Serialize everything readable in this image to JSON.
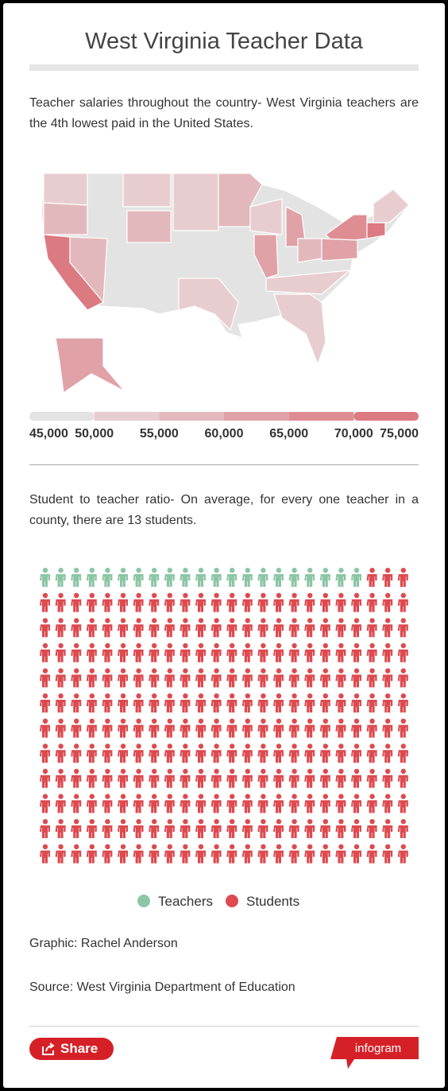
{
  "header": {
    "title": "West Virginia Teacher Data"
  },
  "chart_data": [
    {
      "type": "choropleth-map",
      "description": "Teacher salaries throughout the country- West Virginia teachers are the 4th lowest paid in the United States.",
      "legend_ticks": [
        {
          "value": 45000,
          "label": "45,000"
        },
        {
          "value": 50000,
          "label": "50,000"
        },
        {
          "value": 55000,
          "label": "55,000"
        },
        {
          "value": 60000,
          "label": "60,000"
        },
        {
          "value": 65000,
          "label": "65,000"
        },
        {
          "value": 70000,
          "label": "70,000"
        },
        {
          "value": 75000,
          "label": "75,000"
        }
      ],
      "legend_colors": [
        "#e3e3e3",
        "#e8cdd0",
        "#e3b8bc",
        "#e0a2a7",
        "#de8d93",
        "#dc7a81"
      ]
    },
    {
      "type": "pictogram",
      "description": "Student to teacher ratio- On average, for every one teacher in a county, there are 13 students.",
      "series": [
        {
          "name": "Teachers",
          "color": "#8cc6a4",
          "value": 21
        },
        {
          "name": "Students",
          "color": "#dd4a4f",
          "value": 267
        }
      ]
    }
  ],
  "footer": {
    "graphic": "Graphic: Rachel Anderson",
    "source": "Source: West Virginia Department of Education",
    "share": "Share",
    "brand": "infogram"
  }
}
